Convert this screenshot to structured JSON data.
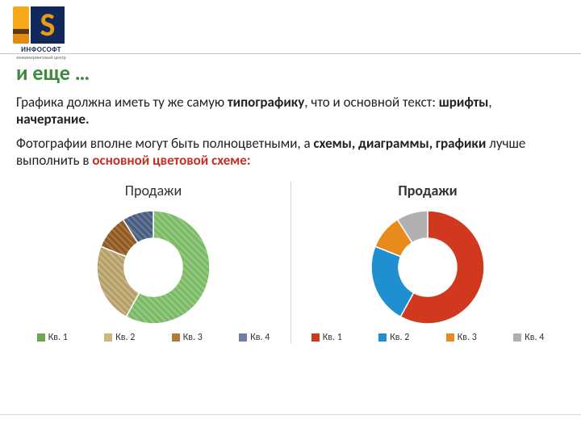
{
  "logo": {
    "caption": "ИНФОСОФТ",
    "sub": "инжиниринговый центр",
    "s_letter": "S"
  },
  "heading": "и еще …",
  "heading_color": "#3f8a3f",
  "paragraphs": [
    {
      "runs": [
        {
          "t": "Графика должна иметь ту же самую ",
          "b": false
        },
        {
          "t": "типографику",
          "b": true
        },
        {
          "t": ", что и основной текст: ",
          "b": false
        },
        {
          "t": "шрифты",
          "b": true
        },
        {
          "t": ", ",
          "b": false
        },
        {
          "t": "начертание.",
          "b": true
        }
      ]
    },
    {
      "runs": [
        {
          "t": "Фотографии вполне могут быть полноцветными, а ",
          "b": false
        },
        {
          "t": "схемы, диаграммы, графики",
          "b": true
        },
        {
          "t": " лучше выполнить в  ",
          "b": false
        },
        {
          "t": "основной цветовой схеме:",
          "b": true,
          "color": "#c23028"
        }
      ]
    }
  ],
  "chart_left": {
    "title": "Продажи",
    "title_bold": false,
    "type": "donut",
    "outer_r": 70,
    "inner_r": 36,
    "slices": [
      {
        "label": "Кв. 1",
        "value": 58,
        "fill": "pattern-green"
      },
      {
        "label": "Кв. 2",
        "value": 23,
        "fill": "pattern-burlap"
      },
      {
        "label": "Кв. 3",
        "value": 10,
        "fill": "pattern-wood"
      },
      {
        "label": "Кв. 4",
        "value": 9,
        "fill": "pattern-denim"
      }
    ],
    "legend_swatches": [
      "#69a84f",
      "#c9b77e",
      "#b07a3a",
      "#6a7fa3"
    ],
    "patterns": {
      "pattern-green": {
        "base": "#7db86a",
        "tex": "#94cf81"
      },
      "pattern-burlap": {
        "base": "#b5a06c",
        "tex": "#cbb988"
      },
      "pattern-wood": {
        "base": "#8f5a2a",
        "tex": "#b07a3a"
      },
      "pattern-denim": {
        "base": "#4a5d7e",
        "tex": "#6a7fa3"
      }
    }
  },
  "chart_right": {
    "title": "Продажи",
    "title_bold": true,
    "type": "donut",
    "outer_r": 70,
    "inner_r": 36,
    "slices": [
      {
        "label": "Кв. 1",
        "value": 58,
        "fill": "#d1391f"
      },
      {
        "label": "Кв. 2",
        "value": 23,
        "fill": "#1f8fd1"
      },
      {
        "label": "Кв. 3",
        "value": 10,
        "fill": "#e88b1a"
      },
      {
        "label": "Кв. 4",
        "value": 9,
        "fill": "#b0b0b0"
      }
    ],
    "legend_swatches": [
      "#d1391f",
      "#1f8fd1",
      "#e88b1a",
      "#b0b0b0"
    ]
  },
  "colors": {
    "divider": "#d8d4d0",
    "text": "#222222",
    "slice_stroke": "#ffffff"
  }
}
